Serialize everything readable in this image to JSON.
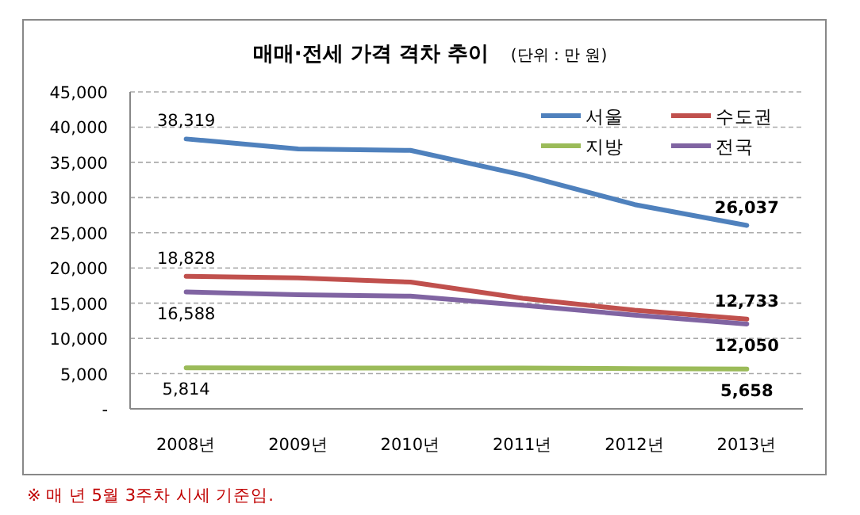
{
  "chart_data": {
    "type": "line",
    "title": "매매·전세 가격 격차 추이",
    "subtitle": "(단위 : 만 원)",
    "categories": [
      "2008년",
      "2009년",
      "2010년",
      "2011년",
      "2012년",
      "2013년"
    ],
    "series": [
      {
        "name": "서울",
        "color": "#4f81bd",
        "values": [
          38319,
          36900,
          36700,
          33200,
          29000,
          26037
        ],
        "value_labels": [
          "38,319",
          null,
          null,
          null,
          null,
          "26,037"
        ]
      },
      {
        "name": "수도권",
        "color": "#c0504d",
        "values": [
          18828,
          18600,
          18000,
          15700,
          14000,
          12733
        ],
        "value_labels": [
          "18,828",
          null,
          null,
          null,
          null,
          "12,733"
        ]
      },
      {
        "name": "지방",
        "color": "#9bbb59",
        "values": [
          5814,
          5800,
          5800,
          5800,
          5700,
          5658
        ],
        "value_labels": [
          "5,814",
          null,
          null,
          null,
          null,
          "5,658"
        ]
      },
      {
        "name": "전국",
        "color": "#8064a2",
        "values": [
          16588,
          16200,
          16000,
          14700,
          13300,
          12050
        ],
        "value_labels": [
          "16,588",
          null,
          null,
          null,
          null,
          "12,050"
        ]
      }
    ],
    "ylim": [
      0,
      45000
    ],
    "yticks": [
      {
        "value": 0,
        "label": "-"
      },
      {
        "value": 5000,
        "label": "5,000"
      },
      {
        "value": 10000,
        "label": "10,000"
      },
      {
        "value": 15000,
        "label": "15,000"
      },
      {
        "value": 20000,
        "label": "20,000"
      },
      {
        "value": 25000,
        "label": "25,000"
      },
      {
        "value": 30000,
        "label": "30,000"
      },
      {
        "value": 35000,
        "label": "35,000"
      },
      {
        "value": 40000,
        "label": "40,000"
      },
      {
        "value": 45000,
        "label": "45,000"
      }
    ],
    "grid": "y",
    "legend": "top right",
    "marker": "none",
    "line_style": "solid",
    "annotations": [
      "※ 매 년 5월 3주차 시세 기준임."
    ]
  }
}
